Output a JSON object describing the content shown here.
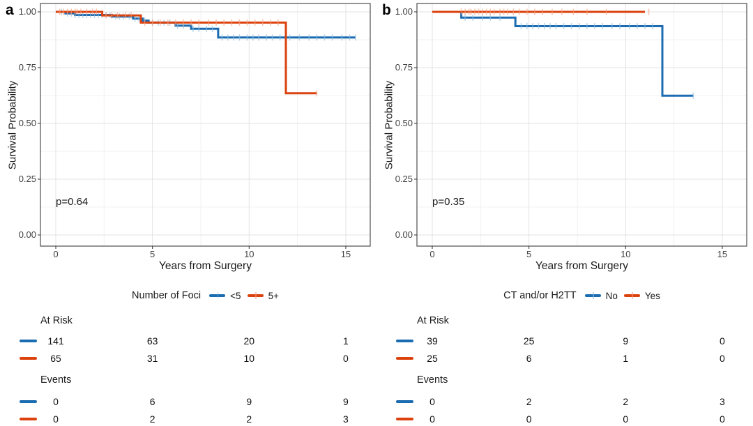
{
  "colors": {
    "background": "#FFFFFF",
    "panel_border": "#4D4D4D",
    "grid_major": "#E3E3E3",
    "grid_minor": "#F1F1F1",
    "axis_text": "#404040",
    "text": "#1A1A1A",
    "blue": "#1B6CB1",
    "red": "#DB420D"
  },
  "chart_data": [
    {
      "type": "line",
      "variant": "kaplan-meier-step",
      "panel_label": "a",
      "xlabel": "Years from Surgery",
      "ylabel": "Survival Probability",
      "p_label": "p=0.64",
      "legend_title": "Number of Foci",
      "legend_position": "bottom",
      "grid": true,
      "xlim": [
        0,
        15.5
      ],
      "ylim": [
        0,
        1.0
      ],
      "xticks": [
        0,
        5,
        10,
        15
      ],
      "xticks_minor": [
        2.5,
        7.5,
        12.5
      ],
      "yticks": [
        0,
        0.25,
        0.5,
        0.75,
        1.0
      ],
      "ytick_labels": [
        "0.00",
        "0.25",
        "0.50",
        "0.75",
        "1.00"
      ],
      "yticks_minor": [
        0.125,
        0.375,
        0.625,
        0.875
      ],
      "series": [
        {
          "name": "<5",
          "color": "#1B6CB1",
          "censor_color": "#8FC0E4",
          "steps": [
            [
              0,
              1.0
            ],
            [
              0.5,
              0.993
            ],
            [
              1.0,
              0.986
            ],
            [
              2.9,
              0.979
            ],
            [
              4.0,
              0.97
            ],
            [
              4.5,
              0.961
            ],
            [
              4.8,
              0.952
            ],
            [
              6.2,
              0.938
            ],
            [
              7.0,
              0.924
            ],
            [
              8.4,
              0.885
            ]
          ],
          "end_time": 15.5,
          "censor_times": [
            0.3,
            0.6,
            0.8,
            1.0,
            1.2,
            1.4,
            1.6,
            1.8,
            2.0,
            2.2,
            2.4,
            2.6,
            2.8,
            3.1,
            3.3,
            3.5,
            3.8,
            4.1,
            4.3,
            4.6,
            5.0,
            5.3,
            5.6,
            5.9,
            6.3,
            6.6,
            7.1,
            7.4,
            7.8,
            8.1,
            8.6,
            8.9,
            9.2,
            9.5,
            9.9,
            10.2,
            10.5,
            10.9,
            11.2,
            11.6,
            12.1,
            12.6,
            13.1,
            13.5,
            13.9,
            14.3,
            14.8,
            15.2,
            15.5
          ]
        },
        {
          "name": "5+",
          "color": "#DB420D",
          "censor_color": "#F5A183",
          "steps": [
            [
              0,
              1.0
            ],
            [
              2.4,
              0.984
            ],
            [
              4.4,
              0.952
            ],
            [
              11.9,
              0.635
            ]
          ],
          "end_time": 13.5,
          "censor_times": [
            0.2,
            0.4,
            0.6,
            0.8,
            1.0,
            1.1,
            1.3,
            1.6,
            1.9,
            2.1,
            2.6,
            2.9,
            3.2,
            3.6,
            3.9,
            4.6,
            5.0,
            5.4,
            5.8,
            6.2,
            6.6,
            7.0,
            7.4,
            7.9,
            8.3,
            8.7,
            9.1,
            9.5,
            9.9,
            10.3,
            10.7,
            11.1,
            11.5,
            13.5
          ]
        }
      ],
      "risk_table": {
        "times": [
          0,
          5,
          10,
          15
        ],
        "at_risk_label": "At Risk",
        "events_label": "Events",
        "at_risk": [
          [
            141,
            63,
            20,
            1
          ],
          [
            65,
            31,
            10,
            0
          ]
        ],
        "events": [
          [
            0,
            6,
            9,
            9
          ],
          [
            0,
            2,
            2,
            3
          ]
        ]
      }
    },
    {
      "type": "line",
      "variant": "kaplan-meier-step",
      "panel_label": "b",
      "xlabel": "Years from Surgery",
      "ylabel": "Survival Probability",
      "p_label": "p=0.35",
      "legend_title": "CT and/or H2TT",
      "legend_position": "bottom",
      "grid": true,
      "xlim": [
        0,
        15.5
      ],
      "ylim": [
        0,
        1.0
      ],
      "xticks": [
        0,
        5,
        10,
        15
      ],
      "xticks_minor": [
        2.5,
        7.5,
        12.5
      ],
      "yticks": [
        0,
        0.25,
        0.5,
        0.75,
        1.0
      ],
      "ytick_labels": [
        "0.00",
        "0.25",
        "0.50",
        "0.75",
        "1.00"
      ],
      "yticks_minor": [
        0.125,
        0.375,
        0.625,
        0.875
      ],
      "series": [
        {
          "name": "No",
          "color": "#1B6CB1",
          "censor_color": "#8FC0E4",
          "steps": [
            [
              0,
              1.0
            ],
            [
              1.5,
              0.974
            ],
            [
              4.3,
              0.936
            ],
            [
              11.9,
              0.624
            ]
          ],
          "end_time": 13.5,
          "censor_times": [
            1.7,
            2.1,
            2.6,
            3.0,
            3.5,
            4.6,
            4.9,
            5.2,
            5.5,
            5.8,
            6.1,
            6.4,
            6.8,
            7.2,
            7.6,
            8.0,
            8.4,
            8.8,
            9.3,
            9.7,
            10.2,
            10.6,
            11.0,
            11.4,
            13.5
          ]
        },
        {
          "name": "Yes",
          "color": "#DB420D",
          "censor_color": "#F5A183",
          "steps": [
            [
              0,
              1.0
            ]
          ],
          "end_time": 11.0,
          "censor_times": [
            1.5,
            1.7,
            1.9,
            2.0,
            2.2,
            2.4,
            2.6,
            2.8,
            3.0,
            3.2,
            3.5,
            3.7,
            3.9,
            4.2,
            4.5,
            4.9,
            5.3,
            5.7,
            6.2,
            6.7,
            7.3,
            8.0,
            9.0,
            11.2
          ]
        }
      ],
      "risk_table": {
        "times": [
          0,
          5,
          10,
          15
        ],
        "at_risk_label": "At Risk",
        "events_label": "Events",
        "at_risk": [
          [
            39,
            25,
            9,
            0
          ],
          [
            25,
            6,
            1,
            0
          ]
        ],
        "events": [
          [
            0,
            2,
            2,
            3
          ],
          [
            0,
            0,
            0,
            0
          ]
        ]
      }
    }
  ]
}
